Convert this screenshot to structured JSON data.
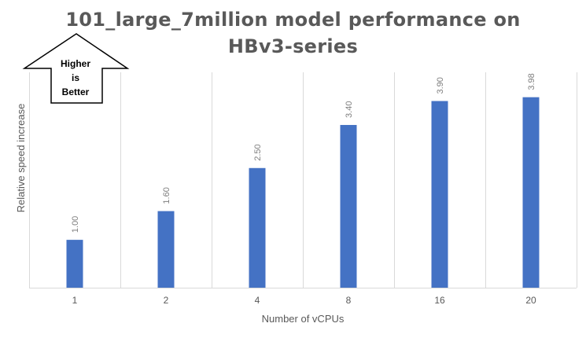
{
  "chart_data": {
    "type": "bar",
    "title_line1": "101_large_7million model performance on",
    "title_line2": "HBv3-series",
    "xlabel": "Number of vCPUs",
    "ylabel": "Relative speed increase",
    "categories": [
      "1",
      "2",
      "4",
      "8",
      "16",
      "20"
    ],
    "values": [
      1.0,
      1.6,
      2.5,
      3.4,
      3.9,
      3.98
    ],
    "data_labels": [
      "1.00",
      "1.60",
      "2.50",
      "3.40",
      "3.90",
      "3.98"
    ],
    "ylim": [
      0,
      4.5
    ],
    "grid": "vertical",
    "legend": "none",
    "bar_color": "#4472C4"
  },
  "callout": {
    "line1": "Higher",
    "line2": "is",
    "line3": "Better"
  }
}
